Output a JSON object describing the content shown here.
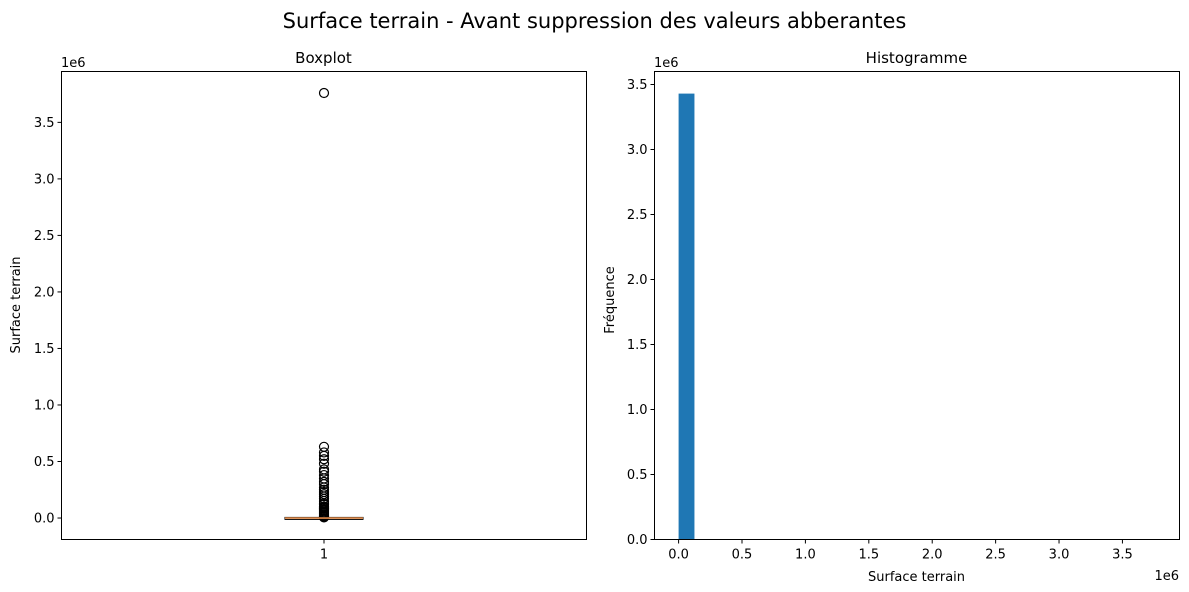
{
  "figure_title": "Surface terrain - Avant suppression des valeurs abberantes",
  "colors": {
    "hist_bar": "#1f77b4",
    "median_line": "#e08a4a",
    "outlier_edge": "#000000",
    "box_edge": "#000000"
  },
  "chart_data": [
    {
      "type": "box",
      "title": "Boxplot",
      "xlabel": "",
      "ylabel": "Surface terrain",
      "y_offset_label": "1e6",
      "xlim": [
        0.5,
        1.5
      ],
      "ylim": [
        -0.19,
        3.95
      ],
      "x_ticks": [
        1
      ],
      "x_tick_labels": [
        "1"
      ],
      "y_ticks": [
        0.0,
        0.5,
        1.0,
        1.5,
        2.0,
        2.5,
        3.0,
        3.5
      ],
      "y_tick_labels": [
        "0.0",
        "0.5",
        "1.0",
        "1.5",
        "2.0",
        "2.5",
        "3.0",
        "3.5"
      ],
      "grid": false,
      "box": {
        "position": 1,
        "q1": 0.0,
        "median": 0.0,
        "q3": 0.001,
        "whisker_low": 0.0,
        "whisker_high": 0.003,
        "outliers": [
          3.76,
          0.63,
          0.58,
          0.55,
          0.52,
          0.48,
          0.43,
          0.41,
          0.38,
          0.35,
          0.32,
          0.3,
          0.27,
          0.25,
          0.23,
          0.21,
          0.19,
          0.17,
          0.15,
          0.13,
          0.12,
          0.1,
          0.09,
          0.08,
          0.07,
          0.06,
          0.05,
          0.04,
          0.03,
          0.02,
          0.015,
          0.01,
          0.006
        ]
      }
    },
    {
      "type": "bar",
      "title": "Histogramme",
      "xlabel": "Surface terrain",
      "ylabel": "Fréquence",
      "x_offset_label": "1e6",
      "y_offset_label": "1e6",
      "xlim": [
        -0.19,
        3.95
      ],
      "ylim": [
        0.0,
        3.6
      ],
      "x_ticks": [
        0.0,
        0.5,
        1.0,
        1.5,
        2.0,
        2.5,
        3.0,
        3.5
      ],
      "x_tick_labels": [
        "0.0",
        "0.5",
        "1.0",
        "1.5",
        "2.0",
        "2.5",
        "3.0",
        "3.5"
      ],
      "y_ticks": [
        0.0,
        0.5,
        1.0,
        1.5,
        2.0,
        2.5,
        3.0,
        3.5
      ],
      "y_tick_labels": [
        "0.0",
        "0.5",
        "1.0",
        "1.5",
        "2.0",
        "2.5",
        "3.0",
        "3.5"
      ],
      "grid": false,
      "bins": [
        {
          "x0": 0.0,
          "x1": 0.125,
          "count": 3.43
        }
      ]
    }
  ]
}
